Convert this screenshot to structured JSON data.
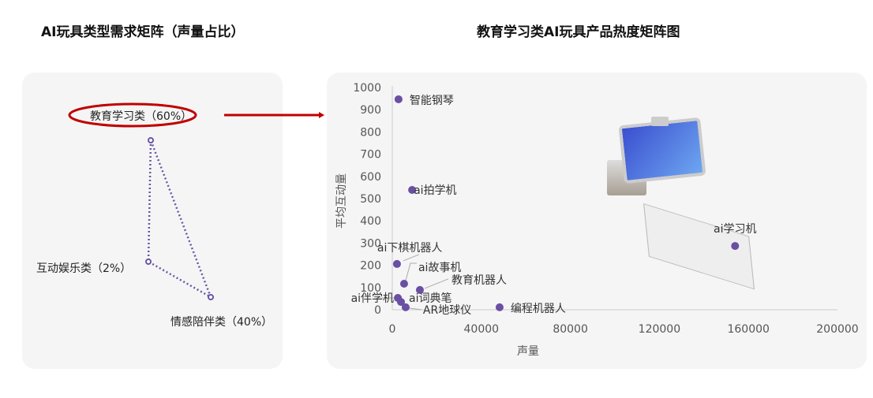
{
  "left": {
    "title": "AI玩具类型需求矩阵（声量占比）",
    "nodes": [
      {
        "label": "教育学习类（60%）"
      },
      {
        "label": "互动娱乐类（2%）"
      },
      {
        "label": "情感陪伴类（40%）"
      }
    ],
    "highlight_color": "#c00000",
    "line_color": "#6a55a8"
  },
  "chart_data": {
    "type": "scatter",
    "title": "教育学习类AI玩具产品热度矩阵图",
    "xlabel": "声量",
    "ylabel": "平均互动量",
    "xlim": [
      0,
      200000
    ],
    "ylim": [
      0,
      1000
    ],
    "xticks": [
      "0",
      "40000",
      "80000",
      "120000",
      "160000",
      "200000"
    ],
    "yticks": [
      "0",
      "100",
      "200",
      "300",
      "400",
      "500",
      "600",
      "700",
      "800",
      "900",
      "1000"
    ],
    "grid": false,
    "point_color": "#6a4fa3",
    "points": [
      {
        "label": "智能钢琴",
        "x": 2800,
        "y": 947
      },
      {
        "label": "ai拍学机",
        "x": 8900,
        "y": 539
      },
      {
        "label": "ai下棋机器人",
        "x": 2100,
        "y": 206
      },
      {
        "label": "ai故事机",
        "x": 5300,
        "y": 117
      },
      {
        "label": "教育机器人",
        "x": 12400,
        "y": 89
      },
      {
        "label": "ai伴学机",
        "x": 2500,
        "y": 53
      },
      {
        "label": "ai词典笔",
        "x": 3900,
        "y": 35
      },
      {
        "label": "AR地球仪",
        "x": 6000,
        "y": 11
      },
      {
        "label": "编程机器人",
        "x": 48200,
        "y": 11
      },
      {
        "label": "ai学习机",
        "x": 154000,
        "y": 287
      }
    ]
  }
}
